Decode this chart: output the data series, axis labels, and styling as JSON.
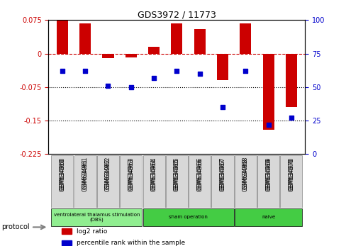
{
  "title": "GDS3972 / 11773",
  "samples": [
    "GSM634960",
    "GSM634961",
    "GSM634962",
    "GSM634963",
    "GSM634964",
    "GSM634965",
    "GSM634966",
    "GSM634967",
    "GSM634968",
    "GSM634969",
    "GSM634970"
  ],
  "log2_ratio": [
    0.076,
    0.068,
    -0.01,
    -0.008,
    0.015,
    0.068,
    0.055,
    -0.06,
    0.068,
    -0.17,
    -0.12
  ],
  "percentile_rank": [
    62,
    62,
    51,
    50,
    57,
    62,
    60,
    35,
    62,
    22,
    27
  ],
  "ylim_left": [
    0.075,
    -0.225
  ],
  "ylim_right": [
    100,
    0
  ],
  "yticks_left": [
    0.075,
    0,
    -0.075,
    -0.15,
    -0.225
  ],
  "yticks_right": [
    100,
    75,
    50,
    25,
    0
  ],
  "hline_y": 0,
  "dotted_lines": [
    -0.075,
    -0.15
  ],
  "bar_color": "#cc0000",
  "scatter_color": "#0000cc",
  "protocol_groups": [
    {
      "label": "ventrolateral thalamus stimulation\n(DBS)",
      "start": 0,
      "end": 3,
      "color": "#90ee90"
    },
    {
      "label": "sham operation",
      "start": 4,
      "end": 7,
      "color": "#00cc44"
    },
    {
      "label": "naive",
      "start": 8,
      "end": 10,
      "color": "#00cc44"
    }
  ],
  "legend_items": [
    {
      "color": "#cc0000",
      "label": "log2 ratio"
    },
    {
      "color": "#0000cc",
      "label": "percentile rank within the sample"
    }
  ],
  "protocol_label": "protocol"
}
